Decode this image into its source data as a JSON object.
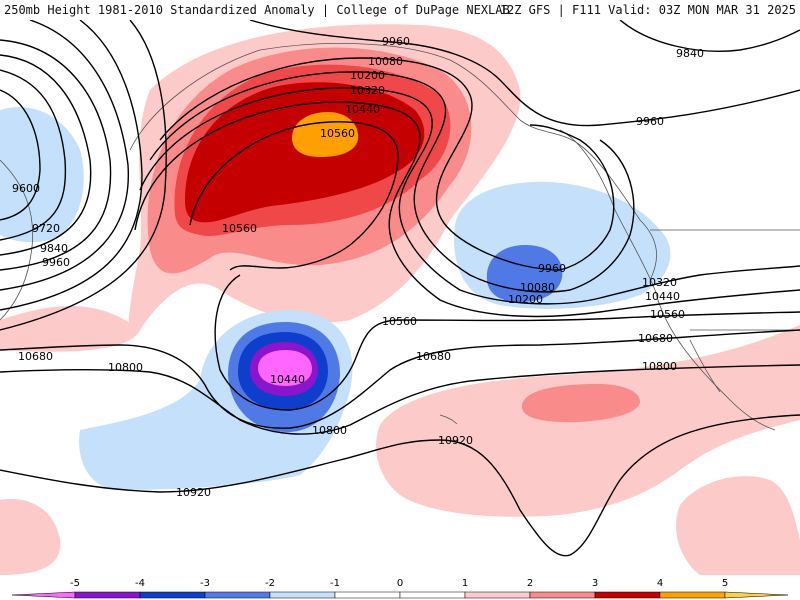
{
  "header": {
    "left_title": "250mb Height 1981-2010 Standardized Anomaly | College of DuPage NEXLAB",
    "right_title": "12Z GFS | F111 Valid: 03Z MON MAR 31 2025"
  },
  "colors": {
    "anom_neg5": "#ff66ff",
    "anom_neg4": "#8b14cc",
    "anom_neg3": "#0d3fcc",
    "anom_neg2": "#4f7ae6",
    "anom_neg1": "#c4e0fa",
    "anom_pos1": "#fdcaca",
    "anom_pos2": "#f98b8b",
    "anom_pos3": "#f04848",
    "anom_pos4": "#c40000",
    "anom_pos5": "#ffa000",
    "contour": "#000000",
    "coast": "#555555"
  },
  "colorbar": {
    "labels": [
      "-5",
      "-4",
      "-3",
      "-2",
      "-1",
      "0",
      "1",
      "2",
      "3",
      "4",
      "5"
    ],
    "segment_colors": [
      "#ff66ff",
      "#8b14cc",
      "#0d3fcc",
      "#4f7ae6",
      "#c4e0fa",
      "#ffffff",
      "#ffffff",
      "#fdcaca",
      "#f98b8b",
      "#c40000",
      "#ffa000",
      "#ffd040"
    ]
  },
  "contour_labels": {
    "c9960_a": "9960",
    "c9840_a": "9840",
    "c10080_a": "10080",
    "c10200_a": "10200",
    "c10320_a": "10320",
    "c10440_a": "10440",
    "c10560_a": "10560",
    "c9960_b": "9960",
    "c9600": "9600",
    "c9720": "9720",
    "c9840_b": "9840",
    "c9960_c": "9960",
    "c10560_b": "10560",
    "c9960_low": "9960",
    "c10080_low": "10080",
    "c10200_low": "10200",
    "c10320_e": "10320",
    "c10440_e": "10440",
    "c10560_e": "10560",
    "c10680_e": "10680",
    "c10800_e": "10800",
    "c10560_c": "10560",
    "c10680_c": "10680",
    "c10440_low": "10440",
    "c10800_c": "10800",
    "c10920_c": "10920",
    "c10680_w": "10680",
    "c10800_w": "10800",
    "c10920_w": "10920"
  }
}
